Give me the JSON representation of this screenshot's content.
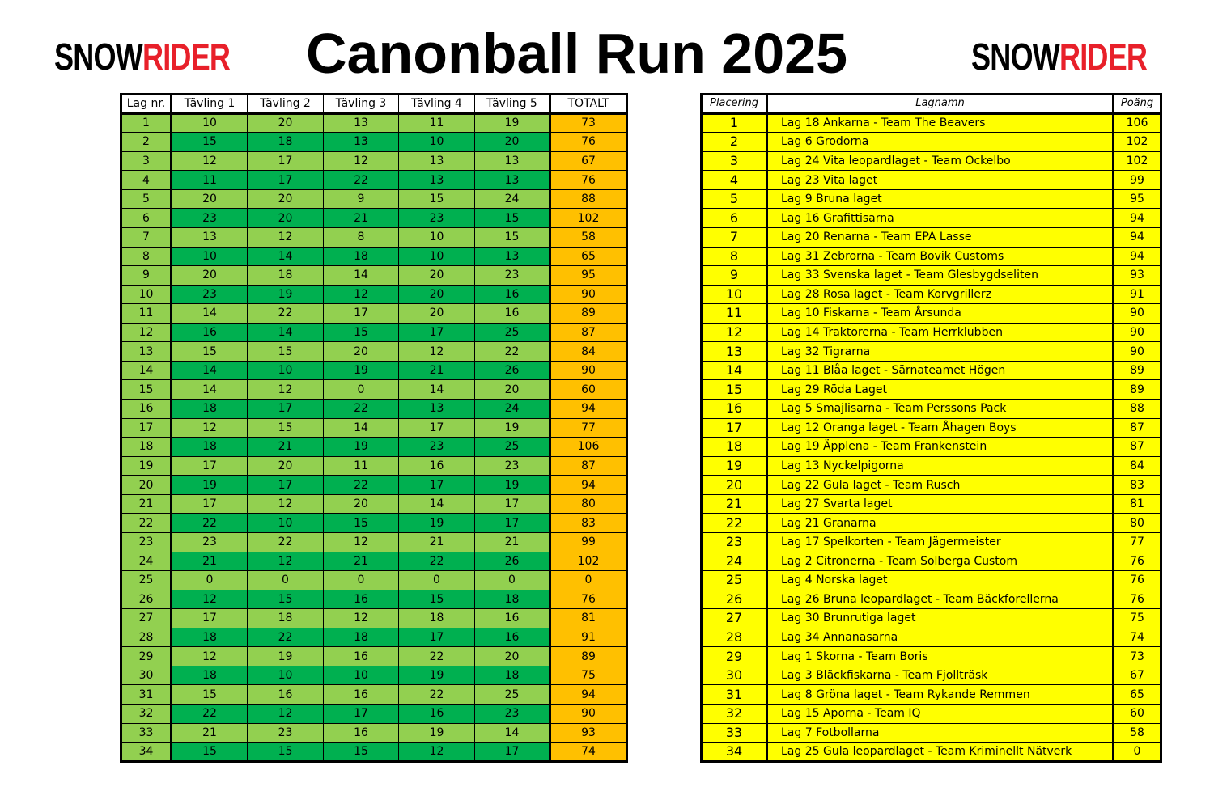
{
  "logo": {
    "part1": "SNOW",
    "part2": "RIDER"
  },
  "title": "Canonball Run 2025",
  "colors": {
    "light_green": "#92d050",
    "dark_green": "#00b050",
    "total": "#ffc000",
    "ranking": "#ffff00",
    "logo_red": "#e8202a"
  },
  "scores": {
    "headers": [
      "Lag nr.",
      "Tävling 1",
      "Tävling 2",
      "Tävling 3",
      "Tävling 4",
      "Tävling 5",
      "TOTALT"
    ],
    "rows": [
      [
        1,
        10,
        20,
        13,
        11,
        19,
        73
      ],
      [
        2,
        15,
        18,
        13,
        10,
        20,
        76
      ],
      [
        3,
        12,
        17,
        12,
        13,
        13,
        67
      ],
      [
        4,
        11,
        17,
        22,
        13,
        13,
        76
      ],
      [
        5,
        20,
        20,
        9,
        15,
        24,
        88
      ],
      [
        6,
        23,
        20,
        21,
        23,
        15,
        102
      ],
      [
        7,
        13,
        12,
        8,
        10,
        15,
        58
      ],
      [
        8,
        10,
        14,
        18,
        10,
        13,
        65
      ],
      [
        9,
        20,
        18,
        14,
        20,
        23,
        95
      ],
      [
        10,
        23,
        19,
        12,
        20,
        16,
        90
      ],
      [
        11,
        14,
        22,
        17,
        20,
        16,
        89
      ],
      [
        12,
        16,
        14,
        15,
        17,
        25,
        87
      ],
      [
        13,
        15,
        15,
        20,
        12,
        22,
        84
      ],
      [
        14,
        14,
        10,
        19,
        21,
        26,
        90
      ],
      [
        15,
        14,
        12,
        0,
        14,
        20,
        60
      ],
      [
        16,
        18,
        17,
        22,
        13,
        24,
        94
      ],
      [
        17,
        12,
        15,
        14,
        17,
        19,
        77
      ],
      [
        18,
        18,
        21,
        19,
        23,
        25,
        106
      ],
      [
        19,
        17,
        20,
        11,
        16,
        23,
        87
      ],
      [
        20,
        19,
        17,
        22,
        17,
        19,
        94
      ],
      [
        21,
        17,
        12,
        20,
        14,
        17,
        80
      ],
      [
        22,
        22,
        10,
        15,
        19,
        17,
        83
      ],
      [
        23,
        23,
        22,
        12,
        21,
        21,
        99
      ],
      [
        24,
        21,
        12,
        21,
        22,
        26,
        102
      ],
      [
        25,
        0,
        0,
        0,
        0,
        0,
        0
      ],
      [
        26,
        12,
        15,
        16,
        15,
        18,
        76
      ],
      [
        27,
        17,
        18,
        12,
        18,
        16,
        81
      ],
      [
        28,
        18,
        22,
        18,
        17,
        16,
        91
      ],
      [
        29,
        12,
        19,
        16,
        22,
        20,
        89
      ],
      [
        30,
        18,
        10,
        10,
        19,
        18,
        75
      ],
      [
        31,
        15,
        16,
        16,
        22,
        25,
        94
      ],
      [
        32,
        22,
        12,
        17,
        16,
        23,
        90
      ],
      [
        33,
        21,
        23,
        16,
        19,
        14,
        93
      ],
      [
        34,
        15,
        15,
        15,
        12,
        17,
        74
      ]
    ]
  },
  "ranking": {
    "headers": [
      "Placering",
      "Lagnamn",
      "Poäng"
    ],
    "rows": [
      [
        1,
        "Lag 18 Ankarna - Team The Beavers",
        106
      ],
      [
        2,
        "Lag 6 Grodorna",
        102
      ],
      [
        3,
        "Lag 24 Vita leopardlaget - Team Ockelbo",
        102
      ],
      [
        4,
        "Lag 23 Vita laget",
        99
      ],
      [
        5,
        "Lag 9 Bruna laget",
        95
      ],
      [
        6,
        "Lag 16 Grafittisarna",
        94
      ],
      [
        7,
        "Lag 20 Renarna - Team EPA Lasse",
        94
      ],
      [
        8,
        "Lag 31 Zebrorna - Team Bovik Customs",
        94
      ],
      [
        9,
        "Lag 33 Svenska laget - Team Glesbygdseliten",
        93
      ],
      [
        10,
        "Lag 28 Rosa laget - Team Korvgrillerz",
        91
      ],
      [
        11,
        "Lag 10 Fiskarna - Team Årsunda",
        90
      ],
      [
        12,
        "Lag 14 Traktorerna - Team Herrklubben",
        90
      ],
      [
        13,
        "Lag 32 Tigrarna",
        90
      ],
      [
        14,
        "Lag 11 Blåa laget - Särnateamet Högen",
        89
      ],
      [
        15,
        "Lag 29 Röda Laget",
        89
      ],
      [
        16,
        "Lag 5 Smajlisarna - Team Perssons Pack",
        88
      ],
      [
        17,
        "Lag 12 Oranga laget - Team Åhagen Boys",
        87
      ],
      [
        18,
        "Lag 19 Äpplena - Team Frankenstein",
        87
      ],
      [
        19,
        "Lag 13 Nyckelpigorna",
        84
      ],
      [
        20,
        "Lag 22 Gula laget - Team Rusch",
        83
      ],
      [
        21,
        "Lag 27 Svarta laget",
        81
      ],
      [
        22,
        "Lag 21 Granarna",
        80
      ],
      [
        23,
        "Lag 17 Spelkorten - Team Jägermeister",
        77
      ],
      [
        24,
        "Lag 2 Citronerna - Team Solberga Custom",
        76
      ],
      [
        25,
        "Lag 4 Norska laget",
        76
      ],
      [
        26,
        "Lag 26 Bruna leopardlaget - Team Bäckforellerna",
        76
      ],
      [
        27,
        "Lag 30 Brunrutiga laget",
        75
      ],
      [
        28,
        "Lag 34 Annanasarna",
        74
      ],
      [
        29,
        "Lag 1 Skorna - Team Boris",
        73
      ],
      [
        30,
        "Lag 3 Bläckfiskarna - Team Fjollträsk",
        67
      ],
      [
        31,
        "Lag 8 Gröna laget - Team Rykande Remmen",
        65
      ],
      [
        32,
        "Lag 15 Aporna - Team IQ",
        60
      ],
      [
        33,
        "Lag 7 Fotbollarna",
        58
      ],
      [
        34,
        "Lag 25 Gula leopardlaget - Team Kriminellt Nätverk",
        0
      ]
    ]
  }
}
